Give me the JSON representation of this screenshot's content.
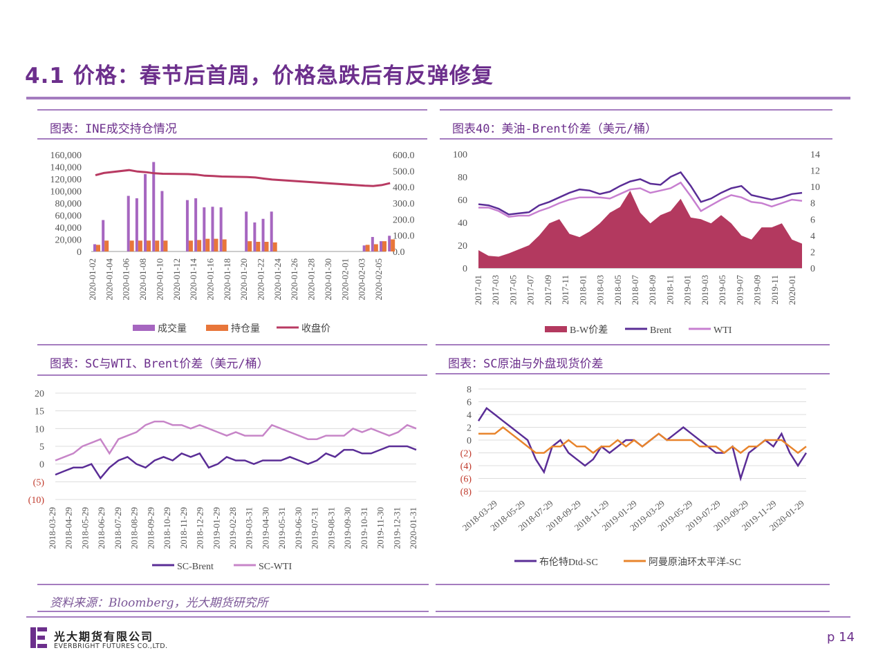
{
  "page": {
    "title": "4.1 价格：春节后首周，价格急跌后有反弹修复",
    "source": "资料来源：Bloomberg，光大期货研究所",
    "logo_cn": "光大期货有限公司",
    "logo_en": "EVERBRIGHT FUTURES CO.,LTD.",
    "page_number": "p 14",
    "accent_color": "#6c2f8c",
    "rule_color": "#a47cbf"
  },
  "chart_data": [
    {
      "id": "ine",
      "type": "bar",
      "title": "图表：INE成交持仓情况",
      "categories": [
        "2020-01-02",
        "2020-01-03",
        "2020-01-06",
        "2020-01-07",
        "2020-01-08",
        "2020-01-09",
        "2020-01-10",
        "2020-01-13",
        "2020-01-14",
        "2020-01-15",
        "2020-01-16",
        "2020-01-17",
        "2020-01-20",
        "2020-01-21",
        "2020-01-22",
        "2020-01-23",
        "2020-02-03",
        "2020-02-04",
        "2020-02-05",
        "2020-02-06"
      ],
      "x_ticks": [
        "2020-01-02",
        "2020-01-04",
        "2020-01-06",
        "2020-01-08",
        "2020-01-10",
        "2020-01-12",
        "2020-01-14",
        "2020-01-16",
        "2020-01-18",
        "2020-01-20",
        "2020-01-22",
        "2020-01-24",
        "2020-01-26",
        "2020-01-28",
        "2020-01-30",
        "2020-02-01",
        "2020-02-03",
        "2020-02-05"
      ],
      "series": [
        {
          "name": "成交量",
          "color": "#a666c0",
          "axis": "left",
          "values": [
            12000,
            52000,
            92000,
            88000,
            128000,
            148000,
            100000,
            85000,
            88000,
            73000,
            74000,
            73000,
            66000,
            48000,
            54000,
            66000,
            10000,
            24000,
            17000,
            26000
          ]
        },
        {
          "name": "持仓量",
          "color": "#e8763a",
          "axis": "left",
          "values": [
            11000,
            18000,
            18000,
            18000,
            18000,
            18000,
            18000,
            18000,
            19000,
            21000,
            21000,
            20000,
            17000,
            16000,
            16000,
            15000,
            11000,
            12000,
            17000,
            20000
          ]
        },
        {
          "name": "收盘价",
          "color": "#b83a62",
          "axis": "right",
          "values": [
            473,
            487,
            505,
            496,
            492,
            485,
            482,
            480,
            477,
            470,
            468,
            465,
            462,
            459,
            452,
            446,
            408,
            406,
            412,
            424
          ]
        }
      ],
      "yleft_ticks": [
        "0",
        "20,000",
        "40,000",
        "60,000",
        "80,000",
        "100,000",
        "120,000",
        "140,000",
        "160,000"
      ],
      "yright_ticks": [
        "0.0",
        "100.0",
        "200.0",
        "300.0",
        "400.0",
        "500.0",
        "600.0"
      ],
      "ylim_left": [
        0,
        160000
      ],
      "ylim_right": [
        0,
        600
      ]
    },
    {
      "id": "wti_brent",
      "type": "area",
      "title": "图表40：美油-Brent价差（美元/桶）",
      "x_ticks": [
        "2017-01",
        "2017-03",
        "2017-05",
        "2017-07",
        "2017-09",
        "2017-11",
        "2018-01",
        "2018-03",
        "2018-05",
        "2018-07",
        "2018-09",
        "2018-11",
        "2019-01",
        "2019-03",
        "2019-05",
        "2019-07",
        "2019-09",
        "2019-11",
        "2020-01"
      ],
      "yleft_ticks": [
        "0",
        "20",
        "40",
        "60",
        "80",
        "100"
      ],
      "yright_ticks": [
        "0",
        "2",
        "4",
        "6",
        "8",
        "10",
        "12",
        "14"
      ],
      "ylim_left": [
        0,
        100
      ],
      "ylim_right": [
        0,
        14
      ],
      "series": [
        {
          "name": "B-W价差",
          "color": "#b3395f",
          "axis": "right",
          "values": [
            2.2,
            1.5,
            1.4,
            1.8,
            2.3,
            2.8,
            4.0,
            5.5,
            6.0,
            4.2,
            3.8,
            4.5,
            5.5,
            6.8,
            7.5,
            9.5,
            6.8,
            5.5,
            6.5,
            7.0,
            8.5,
            6.2,
            6.0,
            5.5,
            6.5,
            5.5,
            4.0,
            3.5,
            5.0,
            5.0,
            5.5,
            3.5,
            3.0
          ]
        },
        {
          "name": "Brent",
          "color": "#5a2d96",
          "axis": "left",
          "values": [
            56,
            55,
            52,
            47,
            48,
            49,
            55,
            58,
            62,
            66,
            69,
            68,
            65,
            67,
            72,
            76,
            78,
            74,
            73,
            80,
            84,
            72,
            58,
            61,
            66,
            70,
            72,
            64,
            62,
            60,
            62,
            65,
            66
          ]
        },
        {
          "name": "WTI",
          "color": "#c77fd0",
          "axis": "left",
          "values": [
            53,
            53,
            50,
            45,
            46,
            46,
            50,
            53,
            57,
            60,
            62,
            62,
            62,
            61,
            65,
            69,
            70,
            66,
            68,
            70,
            75,
            63,
            50,
            55,
            60,
            64,
            62,
            58,
            57,
            54,
            57,
            60,
            59
          ]
        }
      ]
    },
    {
      "id": "sc_spread",
      "type": "line",
      "title": "图表：SC与WTI、Brent价差（美元/桶）",
      "x_ticks": [
        "2018-03-29",
        "2018-04-29",
        "2018-05-29",
        "2018-06-29",
        "2018-07-29",
        "2018-08-29",
        "2018-09-29",
        "2018-10-29",
        "2018-11-29",
        "2018-12-29",
        "2019-01-29",
        "2019-02-28",
        "2019-03-31",
        "2019-04-30",
        "2019-05-31",
        "2019-06-30",
        "2019-07-31",
        "2019-08-31",
        "2019-09-30",
        "2019-10-31",
        "2019-11-30",
        "2019-12-31",
        "2020-01-31"
      ],
      "y_ticks": [
        "(10)",
        "(5)",
        "0",
        "5",
        "10",
        "15",
        "20"
      ],
      "ylim": [
        -10,
        20
      ],
      "series": [
        {
          "name": "SC-Brent",
          "color": "#5a2d96",
          "values": [
            -3,
            -2,
            -1,
            -1,
            0,
            -4,
            -1,
            1,
            2,
            0,
            -1,
            1,
            2,
            1,
            3,
            2,
            3,
            -1,
            0,
            2,
            1,
            1,
            0,
            1,
            1,
            1,
            2,
            1,
            0,
            1,
            3,
            2,
            4,
            4,
            3,
            3,
            4,
            5,
            5,
            5,
            4
          ]
        },
        {
          "name": "SC-WTI",
          "color": "#c785c8",
          "values": [
            1,
            2,
            3,
            5,
            6,
            7,
            3,
            7,
            8,
            9,
            11,
            12,
            12,
            11,
            11,
            10,
            11,
            10,
            9,
            8,
            9,
            8,
            8,
            8,
            11,
            10,
            9,
            8,
            7,
            7,
            8,
            8,
            8,
            10,
            9,
            10,
            9,
            8,
            9,
            11,
            10
          ]
        }
      ]
    },
    {
      "id": "sc_spot",
      "type": "line",
      "title": "图表：SC原油与外盘现货价差",
      "x_ticks": [
        "2018-03-29",
        "2018-05-29",
        "2018-07-29",
        "2018-09-29",
        "2018-11-29",
        "2019-01-29",
        "2019-03-29",
        "2019-05-29",
        "2019-07-29",
        "2019-09-29",
        "2019-11-29",
        "2020-01-29"
      ],
      "y_ticks": [
        "(8)",
        "(6)",
        "(4)",
        "(2)",
        "0",
        "2",
        "4",
        "6",
        "8"
      ],
      "ylim": [
        -8,
        8
      ],
      "series": [
        {
          "name": "布伦特Dtd-SC",
          "color": "#5a2d96",
          "values": [
            3,
            5,
            4,
            3,
            2,
            1,
            0,
            -3,
            -5,
            -1,
            0,
            -2,
            -3,
            -4,
            -3,
            -1,
            -2,
            -1,
            0,
            0,
            -1,
            0,
            1,
            0,
            1,
            2,
            1,
            0,
            -1,
            -2,
            -2,
            -1,
            -6,
            -2,
            -1,
            0,
            -1,
            1,
            -2,
            -4,
            -2
          ]
        },
        {
          "name": "阿曼原油环太平洋-SC",
          "color": "#e8842c",
          "values": [
            1,
            1,
            1,
            2,
            1,
            0,
            -1,
            -2,
            -2,
            -1,
            -1,
            0,
            -1,
            -1,
            -2,
            -1,
            -1,
            0,
            -1,
            0,
            -1,
            0,
            1,
            0,
            0,
            0,
            0,
            -1,
            -1,
            -1,
            -2,
            -1,
            -2,
            -1,
            -1,
            0,
            0,
            0,
            -1,
            -2,
            -1
          ]
        }
      ]
    }
  ]
}
